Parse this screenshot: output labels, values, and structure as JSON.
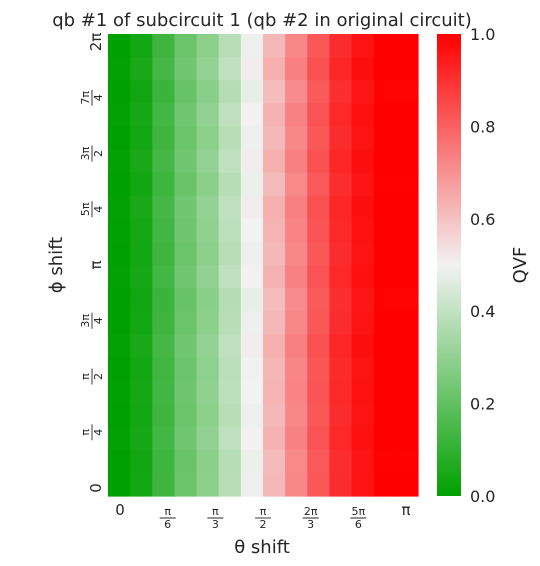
{
  "chart_data": {
    "type": "heatmap",
    "title": "qb #1 of subcircuit 1 (qb #2 in original circuit)",
    "xlabel": "θ shift",
    "ylabel": "ϕ shift",
    "colorbar_label": "QVF",
    "colorbar_range": [
      0.0,
      1.0
    ],
    "colorbar_ticks": [
      "0.0",
      "0.2",
      "0.4",
      "0.6",
      "0.8",
      "1.0"
    ],
    "colormap": [
      "#00a000",
      "#f2f2f2",
      "#ff0000"
    ],
    "x_tick_labels": [
      {
        "num": "0",
        "den": ""
      },
      {
        "num": "π",
        "den": "6"
      },
      {
        "num": "π",
        "den": "3"
      },
      {
        "num": "π",
        "den": "2"
      },
      {
        "num": "2π",
        "den": "3"
      },
      {
        "num": "5π",
        "den": "6"
      },
      {
        "num": "π",
        "den": ""
      }
    ],
    "y_tick_labels": [
      {
        "num": "0",
        "den": ""
      },
      {
        "num": "π",
        "den": "4"
      },
      {
        "num": "π",
        "den": "2"
      },
      {
        "num": "3π",
        "den": "4"
      },
      {
        "num": "π",
        "den": ""
      },
      {
        "num": "5π",
        "den": "4"
      },
      {
        "num": "3π",
        "den": "2"
      },
      {
        "num": "7π",
        "den": "4"
      },
      {
        "num": "2π",
        "den": ""
      }
    ],
    "column_values": [
      0.0,
      0.04,
      0.13,
      0.22,
      0.29,
      0.38,
      0.49,
      0.62,
      0.72,
      0.82,
      0.91,
      0.96,
      1.0,
      1.0
    ],
    "row_offsets": [
      0.0,
      0.02,
      -0.01,
      0.015,
      0.0,
      0.02,
      -0.005,
      0.02,
      0.01,
      0.0,
      0.015,
      -0.01,
      0.0,
      0.02,
      0.005,
      0.01,
      0.0,
      0.015,
      -0.005,
      0.0
    ]
  }
}
